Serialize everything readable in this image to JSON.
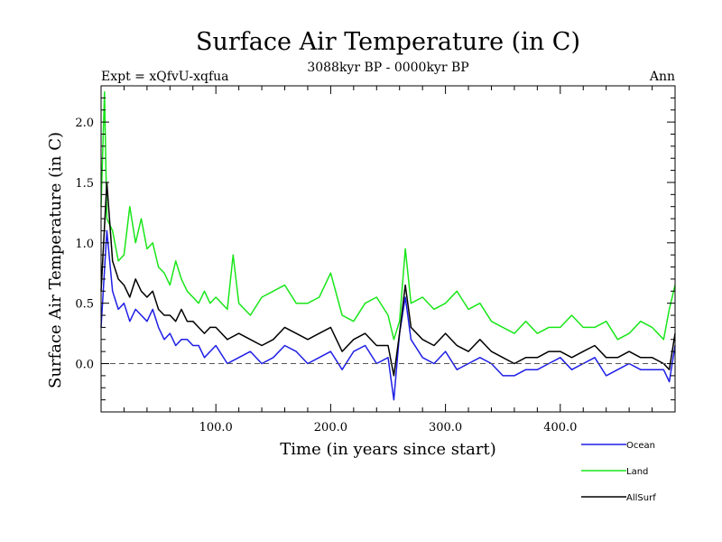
{
  "chart_data": {
    "type": "line",
    "title": "Surface Air Temperature (in C)",
    "subtitle": "3088kyr BP - 0000kyr BP",
    "expt_label": "Expt = xQfvU-xqfua",
    "season_label": "Ann",
    "xlabel": "Time (in years since start)",
    "ylabel": "Surface Air Temperature (in C)",
    "xlim": [
      0,
      500
    ],
    "ylim": [
      -0.4,
      2.3
    ],
    "xticks": [
      100,
      200,
      300,
      400
    ],
    "xtick_labels": [
      "100.0",
      "200.0",
      "300.0",
      "400.0"
    ],
    "yticks": [
      0.0,
      0.5,
      1.0,
      1.5,
      2.0
    ],
    "ytick_labels": [
      "0.0",
      "0.5",
      "1.0",
      "1.5",
      "2.0"
    ],
    "zero_line": true,
    "legend_position": "bottom-right",
    "series": [
      {
        "name": "Ocean",
        "color": "#1e1ee6",
        "x": [
          0,
          5,
          10,
          15,
          20,
          25,
          30,
          35,
          40,
          45,
          50,
          55,
          60,
          65,
          70,
          75,
          80,
          85,
          90,
          95,
          100,
          110,
          120,
          130,
          140,
          150,
          160,
          170,
          180,
          190,
          200,
          210,
          220,
          230,
          240,
          250,
          255,
          260,
          265,
          270,
          280,
          290,
          300,
          310,
          320,
          330,
          340,
          350,
          360,
          370,
          380,
          390,
          400,
          410,
          420,
          430,
          440,
          450,
          460,
          470,
          480,
          490,
          495,
          500
        ],
        "y": [
          0.3,
          1.1,
          0.6,
          0.45,
          0.5,
          0.35,
          0.45,
          0.4,
          0.35,
          0.45,
          0.3,
          0.2,
          0.25,
          0.15,
          0.2,
          0.2,
          0.15,
          0.15,
          0.05,
          0.1,
          0.15,
          0.0,
          0.05,
          0.1,
          0.0,
          0.05,
          0.15,
          0.1,
          0.0,
          0.05,
          0.1,
          -0.05,
          0.1,
          0.15,
          0.0,
          0.05,
          -0.3,
          0.25,
          0.55,
          0.2,
          0.05,
          0.0,
          0.1,
          -0.05,
          0.0,
          0.05,
          0.0,
          -0.1,
          -0.1,
          -0.05,
          -0.05,
          0.0,
          0.05,
          -0.05,
          0.0,
          0.05,
          -0.1,
          -0.05,
          0.0,
          -0.05,
          -0.05,
          -0.05,
          -0.15,
          0.15
        ]
      },
      {
        "name": "Land",
        "color": "#19e619",
        "x": [
          0,
          3,
          5,
          10,
          15,
          20,
          25,
          30,
          35,
          40,
          45,
          50,
          55,
          60,
          65,
          70,
          75,
          80,
          85,
          90,
          95,
          100,
          110,
          115,
          120,
          130,
          140,
          150,
          160,
          170,
          180,
          190,
          200,
          210,
          220,
          230,
          240,
          250,
          255,
          260,
          265,
          270,
          280,
          290,
          300,
          310,
          320,
          330,
          340,
          350,
          360,
          370,
          380,
          390,
          400,
          410,
          420,
          430,
          440,
          450,
          460,
          470,
          480,
          490,
          495,
          500
        ],
        "y": [
          1.3,
          2.25,
          1.2,
          1.1,
          0.85,
          0.9,
          1.3,
          1.0,
          1.2,
          0.95,
          1.0,
          0.8,
          0.75,
          0.65,
          0.85,
          0.7,
          0.6,
          0.55,
          0.5,
          0.6,
          0.5,
          0.55,
          0.45,
          0.9,
          0.5,
          0.4,
          0.55,
          0.6,
          0.65,
          0.5,
          0.5,
          0.55,
          0.75,
          0.4,
          0.35,
          0.5,
          0.55,
          0.4,
          0.2,
          0.35,
          0.95,
          0.5,
          0.55,
          0.45,
          0.5,
          0.6,
          0.45,
          0.5,
          0.35,
          0.3,
          0.25,
          0.35,
          0.25,
          0.3,
          0.3,
          0.4,
          0.3,
          0.3,
          0.35,
          0.2,
          0.25,
          0.35,
          0.3,
          0.2,
          0.45,
          0.65
        ]
      },
      {
        "name": "AllSurf",
        "color": "#000000",
        "x": [
          0,
          5,
          10,
          15,
          20,
          25,
          30,
          35,
          40,
          45,
          50,
          55,
          60,
          65,
          70,
          75,
          80,
          85,
          90,
          95,
          100,
          110,
          120,
          130,
          140,
          150,
          160,
          170,
          180,
          190,
          200,
          210,
          220,
          230,
          240,
          250,
          255,
          260,
          265,
          270,
          280,
          290,
          300,
          310,
          320,
          330,
          340,
          350,
          360,
          370,
          380,
          390,
          400,
          410,
          420,
          430,
          440,
          450,
          460,
          470,
          480,
          490,
          495,
          500
        ],
        "y": [
          0.6,
          1.5,
          0.85,
          0.7,
          0.65,
          0.55,
          0.7,
          0.6,
          0.55,
          0.6,
          0.45,
          0.4,
          0.4,
          0.35,
          0.45,
          0.35,
          0.35,
          0.3,
          0.25,
          0.3,
          0.3,
          0.2,
          0.25,
          0.2,
          0.15,
          0.2,
          0.3,
          0.25,
          0.2,
          0.25,
          0.3,
          0.1,
          0.2,
          0.25,
          0.15,
          0.15,
          -0.1,
          0.25,
          0.65,
          0.3,
          0.2,
          0.15,
          0.25,
          0.15,
          0.1,
          0.2,
          0.1,
          0.05,
          0.0,
          0.05,
          0.05,
          0.1,
          0.1,
          0.05,
          0.1,
          0.15,
          0.05,
          0.05,
          0.1,
          0.05,
          0.05,
          0.0,
          -0.05,
          0.25
        ]
      }
    ]
  }
}
